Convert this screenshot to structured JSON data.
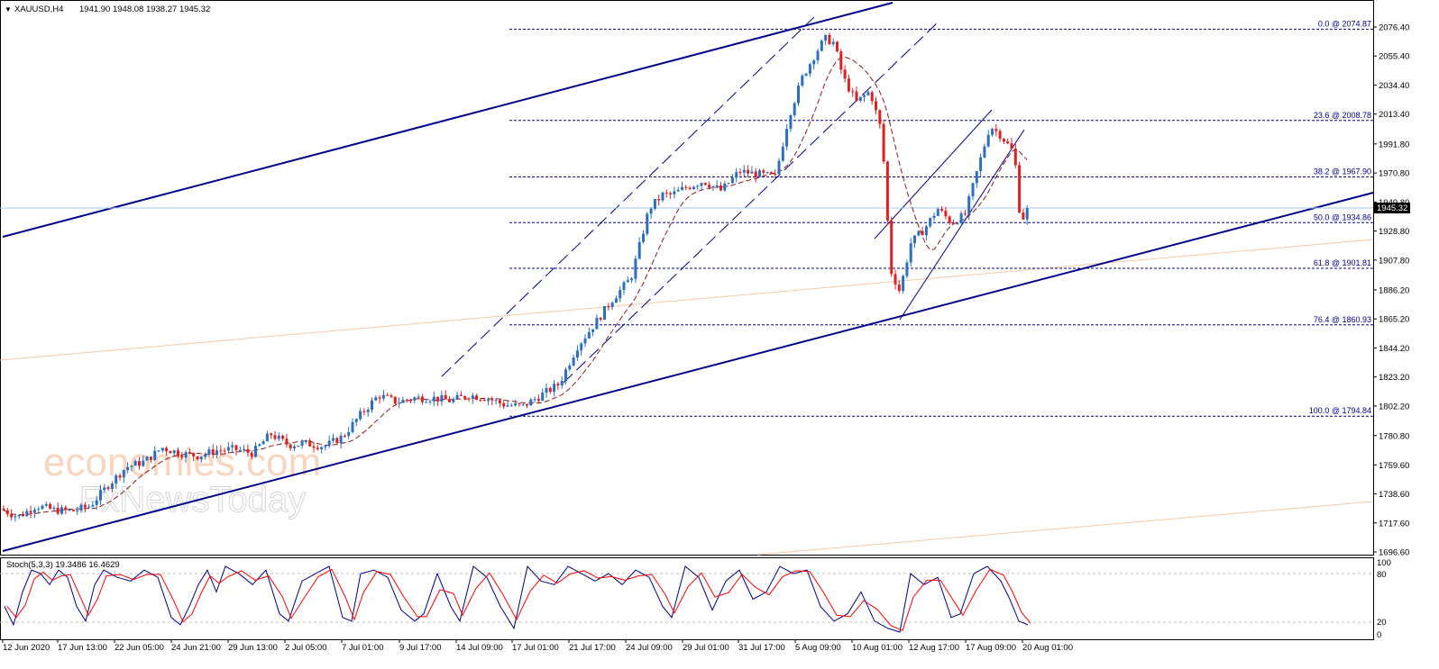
{
  "header": {
    "symbol": "XAUUSD,H4",
    "ohlc": "1941.90 1948.08 1938.27 1945.32"
  },
  "indicator": {
    "label": "Stoch(5,3,3) 19.3486 16.4629",
    "levels": [
      "100",
      "80",
      "20",
      "0"
    ]
  },
  "watermark": {
    "line1": "economies.com",
    "line2": "FxNewsToday"
  },
  "colors": {
    "bull": "#2a6fc0",
    "bear": "#e02020",
    "trend": "#00008b",
    "fib": "#00008b",
    "ma": "#8b1a1a",
    "stoch_main": "#00008b",
    "stoch_signal": "#ff0000",
    "price_tag_bg": "#000000"
  },
  "chart_data": {
    "type": "candlestick",
    "ylim": [
      1696.6,
      2087
    ],
    "y_ticks": [
      "2076.40",
      "2055.40",
      "2034.40",
      "2013.40",
      "1991.80",
      "1970.80",
      "1949.80",
      "1928.80",
      "1907.80",
      "1886.20",
      "1865.20",
      "1844.20",
      "1823.20",
      "1802.20",
      "1780.80",
      "1759.60",
      "1738.60",
      "1717.60",
      "1696.60"
    ],
    "x_labels": [
      "12 Jun 2020",
      "17 Jun 13:00",
      "22 Jun 05:00",
      "24 Jun 21:00",
      "29 Jun 13:00",
      "2 Jul 05:00",
      "7 Jul 01:00",
      "9 Jul 17:00",
      "14 Jul 09:00",
      "17 Jul 01:00",
      "21 Jul 17:00",
      "24 Jul 09:00",
      "29 Jul 01:00",
      "31 Jul 17:00",
      "5 Aug 09:00",
      "10 Aug 01:00",
      "12 Aug 17:00",
      "17 Aug 09:00",
      "20 Aug 01:00"
    ],
    "current_price": "1945.32",
    "fibonacci": [
      {
        "label": "0.0 @ 2074.87",
        "price": 2074.87
      },
      {
        "label": "23.6 @ 2008.78",
        "price": 2008.78
      },
      {
        "label": "38.2 @ 1967.90",
        "price": 1967.9
      },
      {
        "label": "50.0 @ 1934.86",
        "price": 1934.86
      },
      {
        "label": "61.8 @ 1901.81",
        "price": 1901.81
      },
      {
        "label": "76.4 @ 1860.93",
        "price": 1860.93
      },
      {
        "label": "100.0 @ 1794.84",
        "price": 1794.84
      }
    ],
    "close_path": [
      [
        0,
        1728
      ],
      [
        20,
        1722
      ],
      [
        40,
        1730
      ],
      [
        60,
        1727
      ],
      [
        80,
        1726
      ],
      [
        100,
        1730
      ],
      [
        120,
        1745
      ],
      [
        140,
        1758
      ],
      [
        160,
        1762
      ],
      [
        180,
        1772
      ],
      [
        200,
        1768
      ],
      [
        220,
        1766
      ],
      [
        240,
        1770
      ],
      [
        260,
        1771
      ],
      [
        280,
        1768
      ],
      [
        300,
        1782
      ],
      [
        320,
        1774
      ],
      [
        340,
        1775
      ],
      [
        360,
        1773
      ],
      [
        380,
        1780
      ],
      [
        400,
        1796
      ],
      [
        420,
        1810
      ],
      [
        440,
        1805
      ],
      [
        460,
        1808
      ],
      [
        480,
        1808
      ],
      [
        500,
        1806
      ],
      [
        520,
        1810
      ],
      [
        540,
        1808
      ],
      [
        560,
        1803
      ],
      [
        580,
        1802
      ],
      [
        600,
        1810
      ],
      [
        620,
        1818
      ],
      [
        640,
        1845
      ],
      [
        660,
        1862
      ],
      [
        680,
        1880
      ],
      [
        700,
        1895
      ],
      [
        720,
        1945
      ],
      [
        735,
        1955
      ],
      [
        745,
        1955
      ],
      [
        760,
        1960
      ],
      [
        780,
        1965
      ],
      [
        800,
        1958
      ],
      [
        820,
        1972
      ],
      [
        840,
        1970
      ],
      [
        860,
        1968
      ],
      [
        875,
        2012
      ],
      [
        890,
        2040
      ],
      [
        905,
        2058
      ],
      [
        915,
        2068
      ],
      [
        925,
        2065
      ],
      [
        935,
        2040
      ],
      [
        950,
        2022
      ],
      [
        965,
        2030
      ],
      [
        978,
        2000
      ],
      [
        988,
        1900
      ],
      [
        998,
        1885
      ],
      [
        1010,
        1920
      ],
      [
        1025,
        1930
      ],
      [
        1040,
        1945
      ],
      [
        1055,
        1935
      ],
      [
        1070,
        1940
      ],
      [
        1085,
        1975
      ],
      [
        1098,
        2005
      ],
      [
        1110,
        1998
      ],
      [
        1125,
        1985
      ],
      [
        1132,
        1935
      ],
      [
        1140,
        1945
      ]
    ],
    "stoch": [
      [
        5,
        40
      ],
      [
        15,
        15
      ],
      [
        25,
        60
      ],
      [
        35,
        90
      ],
      [
        45,
        85
      ],
      [
        55,
        70
      ],
      [
        65,
        90
      ],
      [
        75,
        80
      ],
      [
        85,
        40
      ],
      [
        95,
        20
      ],
      [
        105,
        70
      ],
      [
        115,
        90
      ],
      [
        130,
        80
      ],
      [
        145,
        75
      ],
      [
        160,
        90
      ],
      [
        175,
        80
      ],
      [
        190,
        25
      ],
      [
        200,
        15
      ],
      [
        210,
        40
      ],
      [
        220,
        70
      ],
      [
        230,
        90
      ],
      [
        240,
        60
      ],
      [
        250,
        95
      ],
      [
        265,
        85
      ],
      [
        280,
        70
      ],
      [
        295,
        90
      ],
      [
        310,
        30
      ],
      [
        320,
        20
      ],
      [
        335,
        75
      ],
      [
        350,
        85
      ],
      [
        365,
        95
      ],
      [
        380,
        25
      ],
      [
        390,
        20
      ],
      [
        400,
        85
      ],
      [
        415,
        90
      ],
      [
        430,
        80
      ],
      [
        445,
        35
      ],
      [
        460,
        20
      ],
      [
        470,
        30
      ],
      [
        485,
        85
      ],
      [
        500,
        40
      ],
      [
        510,
        20
      ],
      [
        525,
        95
      ],
      [
        540,
        80
      ],
      [
        555,
        40
      ],
      [
        570,
        10
      ],
      [
        585,
        95
      ],
      [
        600,
        75
      ],
      [
        615,
        70
      ],
      [
        630,
        95
      ],
      [
        645,
        85
      ],
      [
        660,
        75
      ],
      [
        675,
        85
      ],
      [
        690,
        70
      ],
      [
        705,
        90
      ],
      [
        720,
        80
      ],
      [
        735,
        40
      ],
      [
        745,
        25
      ],
      [
        760,
        95
      ],
      [
        775,
        80
      ],
      [
        790,
        35
      ],
      [
        805,
        75
      ],
      [
        820,
        90
      ],
      [
        835,
        50
      ],
      [
        850,
        60
      ],
      [
        865,
        95
      ],
      [
        880,
        85
      ],
      [
        895,
        90
      ],
      [
        910,
        40
      ],
      [
        925,
        20
      ],
      [
        940,
        30
      ],
      [
        955,
        60
      ],
      [
        970,
        20
      ],
      [
        985,
        10
      ],
      [
        998,
        5
      ],
      [
        1010,
        85
      ],
      [
        1025,
        70
      ],
      [
        1040,
        80
      ],
      [
        1055,
        25
      ],
      [
        1065,
        30
      ],
      [
        1080,
        85
      ],
      [
        1095,
        95
      ],
      [
        1110,
        75
      ],
      [
        1120,
        50
      ],
      [
        1130,
        20
      ],
      [
        1140,
        15
      ]
    ]
  }
}
